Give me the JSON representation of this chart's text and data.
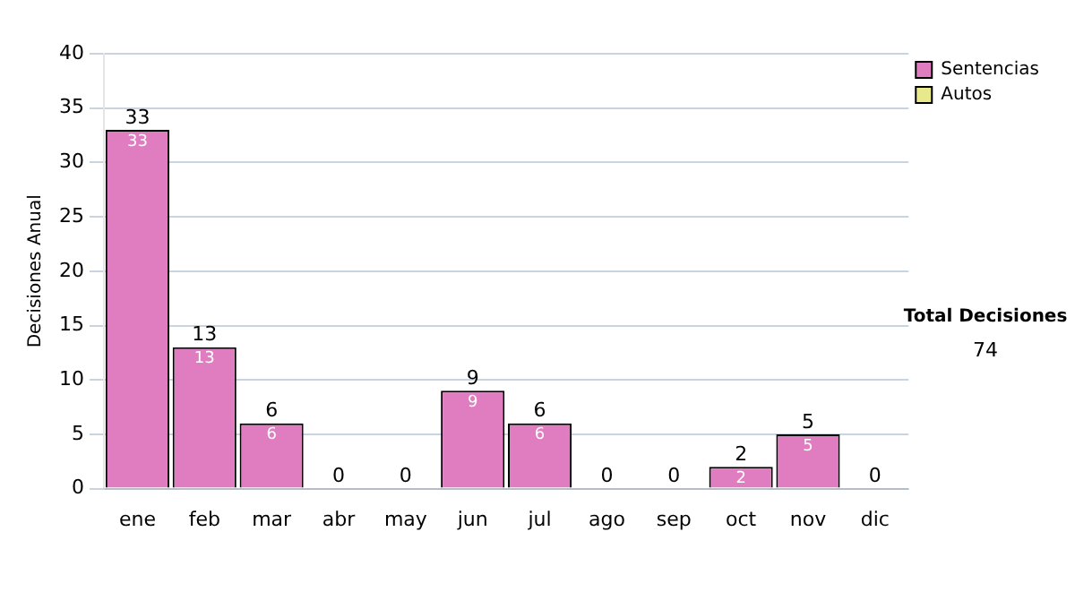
{
  "chart_data": {
    "type": "bar",
    "stacked": true,
    "ylabel": "Decisiones Anual",
    "categories": [
      "ene",
      "feb",
      "mar",
      "abr",
      "may",
      "jun",
      "jul",
      "ago",
      "sep",
      "oct",
      "nov",
      "dic"
    ],
    "series": [
      {
        "name": "Sentencias",
        "color": "#e07cc0",
        "values": [
          33,
          13,
          6,
          0,
          0,
          9,
          6,
          0,
          0,
          2,
          5,
          0
        ],
        "value_labels": [
          "33",
          "13",
          "6",
          null,
          null,
          "9",
          "6",
          null,
          null,
          "2",
          "5",
          null
        ]
      },
      {
        "name": "Autos",
        "color": "#e8e88c",
        "values": [
          0,
          0,
          0,
          0,
          0,
          0,
          0,
          0,
          0,
          0,
          0,
          0
        ]
      }
    ],
    "totals": [
      "33",
      "13",
      "6",
      "0",
      "0",
      "9",
      "6",
      "0",
      "0",
      "2",
      "5",
      "0"
    ],
    "ylim": [
      0,
      40
    ],
    "yticks": [
      0,
      5,
      10,
      15,
      20,
      25,
      30,
      35,
      40
    ],
    "grid": "y",
    "legend": "right",
    "annotations": [
      "Total Decisiones",
      "74"
    ]
  }
}
